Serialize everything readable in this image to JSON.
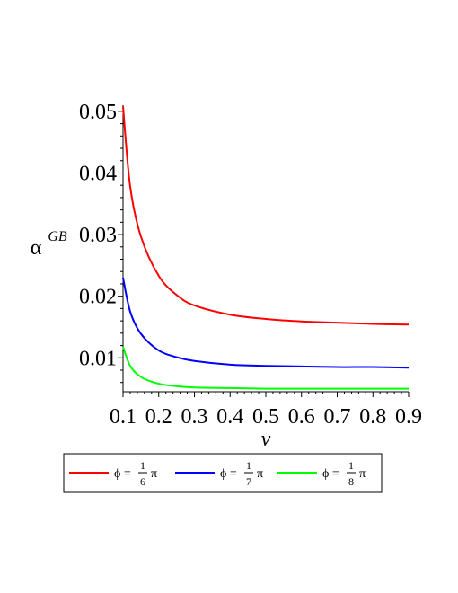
{
  "chart_data": {
    "type": "line",
    "xlabel": "v",
    "ylabel": "α",
    "ylabel_sup": "GB",
    "xlim": [
      0.1,
      0.9
    ],
    "ylim": [
      0.0045,
      0.051
    ],
    "x_ticks": [
      "0.1",
      "0.2",
      "0.3",
      "0.4",
      "0.5",
      "0.6",
      "0.7",
      "0.8",
      "0.9"
    ],
    "y_ticks": [
      "0.01",
      "0.02",
      "0.03",
      "0.04",
      "0.05"
    ],
    "legend_placement": "bottom",
    "series": [
      {
        "name": "ϕ = 1/6 π",
        "phi_symbol": "ϕ =",
        "frac_num": "1",
        "frac_den": "6",
        "pi": "π",
        "color": "#ff0000",
        "x": [
          0.1,
          0.12,
          0.15,
          0.2,
          0.25,
          0.3,
          0.4,
          0.5,
          0.6,
          0.7,
          0.8,
          0.9
        ],
        "y": [
          0.0508,
          0.0378,
          0.0297,
          0.0233,
          0.0202,
          0.0185,
          0.017,
          0.0163,
          0.0159,
          0.0157,
          0.0155,
          0.0154
        ]
      },
      {
        "name": "ϕ = 1/7 π",
        "phi_symbol": "ϕ =",
        "frac_num": "1",
        "frac_den": "7",
        "pi": "π",
        "color": "#0000ff",
        "x": [
          0.1,
          0.12,
          0.15,
          0.2,
          0.25,
          0.3,
          0.4,
          0.5,
          0.6,
          0.7,
          0.8,
          0.9
        ],
        "y": [
          0.023,
          0.0175,
          0.0139,
          0.0112,
          0.0101,
          0.0095,
          0.0089,
          0.0087,
          0.0086,
          0.0085,
          0.0085,
          0.0084
        ]
      },
      {
        "name": "ϕ = 1/8 π",
        "phi_symbol": "ϕ =",
        "frac_num": "1",
        "frac_den": "8",
        "pi": "π",
        "color": "#00ff00",
        "x": [
          0.1,
          0.12,
          0.15,
          0.2,
          0.25,
          0.3,
          0.4,
          0.5,
          0.6,
          0.7,
          0.8,
          0.9
        ],
        "y": [
          0.0118,
          0.0087,
          0.0069,
          0.0058,
          0.0054,
          0.0052,
          0.0051,
          0.005,
          0.005,
          0.005,
          0.005,
          0.005
        ]
      }
    ]
  }
}
